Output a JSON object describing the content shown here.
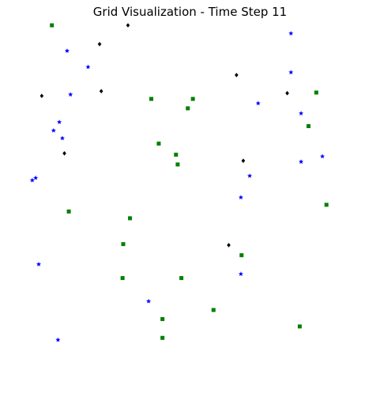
{
  "chart_data": {
    "type": "scatter",
    "title": "Grid Visualization - Time Step 11",
    "xlabel": "",
    "ylabel": "",
    "xlim": [
      0,
      100
    ],
    "ylim": [
      0,
      100
    ],
    "grid": false,
    "axes_visible": false,
    "series": [
      {
        "color": "#0000ff",
        "marker": "star",
        "points": [
          [
            76.7,
            97.6
          ],
          [
            76.7,
            86.0
          ],
          [
            10.5,
            92.4
          ],
          [
            16.7,
            87.6
          ],
          [
            11.5,
            79.4
          ],
          [
            67.0,
            76.8
          ],
          [
            79.7,
            73.8
          ],
          [
            8.2,
            71.2
          ],
          [
            6.5,
            68.7
          ],
          [
            9.1,
            66.4
          ],
          [
            79.7,
            59.4
          ],
          [
            86.0,
            61.0
          ],
          [
            0.2,
            53.9
          ],
          [
            1.2,
            54.6
          ],
          [
            64.5,
            55.2
          ],
          [
            61.9,
            48.8
          ],
          [
            2.1,
            28.9
          ],
          [
            61.9,
            26.0
          ],
          [
            34.6,
            17.9
          ],
          [
            7.8,
            6.4
          ]
        ]
      },
      {
        "color": "#008000",
        "marker": "square",
        "points": [
          [
            6.0,
            100.0
          ],
          [
            35.4,
            78.1
          ],
          [
            47.7,
            78.1
          ],
          [
            46.2,
            75.3
          ],
          [
            84.2,
            80.0
          ],
          [
            81.9,
            70.0
          ],
          [
            37.6,
            64.8
          ],
          [
            42.7,
            61.5
          ],
          [
            43.2,
            58.6
          ],
          [
            87.2,
            46.6
          ],
          [
            11.0,
            44.6
          ],
          [
            29.1,
            42.6
          ],
          [
            27.1,
            34.9
          ],
          [
            62.1,
            31.6
          ],
          [
            26.9,
            24.8
          ],
          [
            44.3,
            24.8
          ],
          [
            53.8,
            15.3
          ],
          [
            38.7,
            12.6
          ],
          [
            38.7,
            7.0
          ],
          [
            79.3,
            10.4
          ]
        ]
      },
      {
        "color": "#000000",
        "marker": "diamond",
        "points": [
          [
            28.5,
            100.0
          ],
          [
            20.1,
            94.4
          ],
          [
            60.6,
            85.2
          ],
          [
            75.6,
            79.8
          ],
          [
            3.0,
            79.0
          ],
          [
            20.6,
            80.4
          ],
          [
            9.7,
            61.9
          ],
          [
            62.6,
            59.7
          ],
          [
            58.3,
            34.6
          ]
        ]
      }
    ]
  }
}
